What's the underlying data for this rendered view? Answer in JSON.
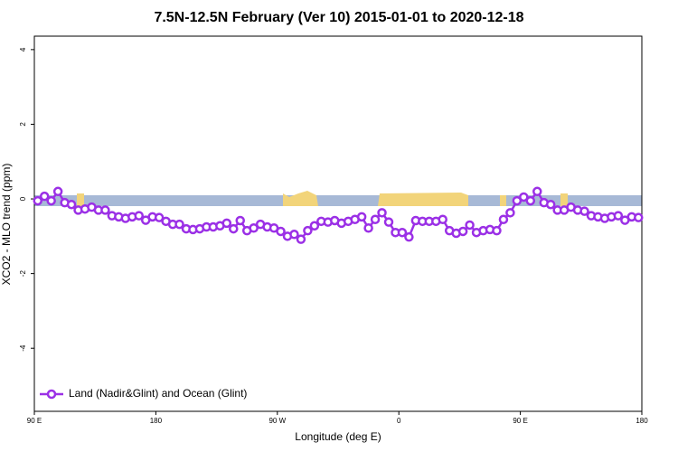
{
  "chart_data": {
    "type": "line",
    "title": "7.5N-12.5N February (Ver 10)   2015-01-01 to 2020-12-18",
    "x_label": "Longitude (deg E)",
    "y_label": "XCO2 - MLO trend (ppm)",
    "xlim": [
      90,
      540
    ],
    "ylim": [
      -5.69,
      4.36
    ],
    "xticks": [
      {
        "value": 90,
        "label": "90 E"
      },
      180,
      {
        "value": 270,
        "label": "90 W"
      },
      {
        "value": 360,
        "label": "0"
      },
      {
        "value": 450,
        "label": "90 E"
      },
      {
        "value": 540,
        "label": "180"
      }
    ],
    "yticks": [
      -4,
      -2,
      0,
      2,
      4
    ],
    "legend": "bottom-left",
    "x": [
      92.5,
      97.5,
      102.5,
      107.5,
      112.5,
      117.5,
      122.5,
      127.5,
      132.5,
      137.5,
      142.5,
      147.5,
      152.5,
      157.5,
      162.5,
      167.5,
      172.5,
      177.5,
      182.5,
      187.5,
      192.5,
      197.5,
      202.5,
      207.5,
      212.5,
      217.5,
      222.5,
      227.5,
      232.5,
      237.5,
      242.5,
      247.5,
      252.5,
      257.5,
      262.5,
      267.5,
      272.5,
      277.5,
      282.5,
      287.5,
      292.5,
      297.5,
      302.5,
      307.5,
      312.5,
      317.5,
      322.5,
      327.5,
      332.5,
      337.5,
      342.5,
      347.5,
      352.5,
      357.5,
      362.5,
      367.5,
      372.5,
      377.5,
      382.5,
      387.5,
      392.5,
      397.5,
      402.5,
      407.5,
      412.5,
      417.5,
      422.5,
      427.5,
      432.5,
      437.5,
      442.5,
      447.5,
      452.5,
      457.5,
      462.5,
      467.5,
      472.5,
      477.5,
      482.5,
      487.5,
      492.5,
      497.5,
      502.5,
      507.5,
      512.5,
      517.5,
      522.5,
      527.5,
      532.5,
      537.5
    ],
    "series": [
      {
        "name": "Land (Nadir&Glint) and Ocean (Glint)",
        "color": "#9b30e6",
        "values": [
          -0.05,
          0.07,
          -0.05,
          0.2,
          -0.1,
          -0.15,
          -0.3,
          -0.27,
          -0.22,
          -0.3,
          -0.3,
          -0.45,
          -0.48,
          -0.52,
          -0.48,
          -0.45,
          -0.57,
          -0.48,
          -0.5,
          -0.6,
          -0.68,
          -0.68,
          -0.8,
          -0.82,
          -0.8,
          -0.75,
          -0.75,
          -0.72,
          -0.65,
          -0.8,
          -0.58,
          -0.85,
          -0.78,
          -0.68,
          -0.75,
          -0.78,
          -0.87,
          -1.0,
          -0.95,
          -1.08,
          -0.85,
          -0.72,
          -0.6,
          -0.62,
          -0.58,
          -0.65,
          -0.6,
          -0.55,
          -0.48,
          -0.78,
          -0.55,
          -0.37,
          -0.62,
          -0.9,
          -0.9,
          -1.02,
          -0.58,
          -0.6,
          -0.6,
          -0.6,
          -0.55,
          -0.85,
          -0.92,
          -0.87,
          -0.7,
          -0.9,
          -0.85,
          -0.82,
          -0.85,
          -0.55,
          -0.37,
          -0.05,
          0.05,
          -0.05,
          0.2,
          -0.1,
          -0.15,
          -0.3,
          -0.3,
          -0.22,
          -0.3,
          -0.33,
          -0.45,
          -0.48,
          -0.52,
          -0.48,
          -0.45,
          -0.57,
          -0.48,
          -0.5
        ]
      }
    ]
  }
}
